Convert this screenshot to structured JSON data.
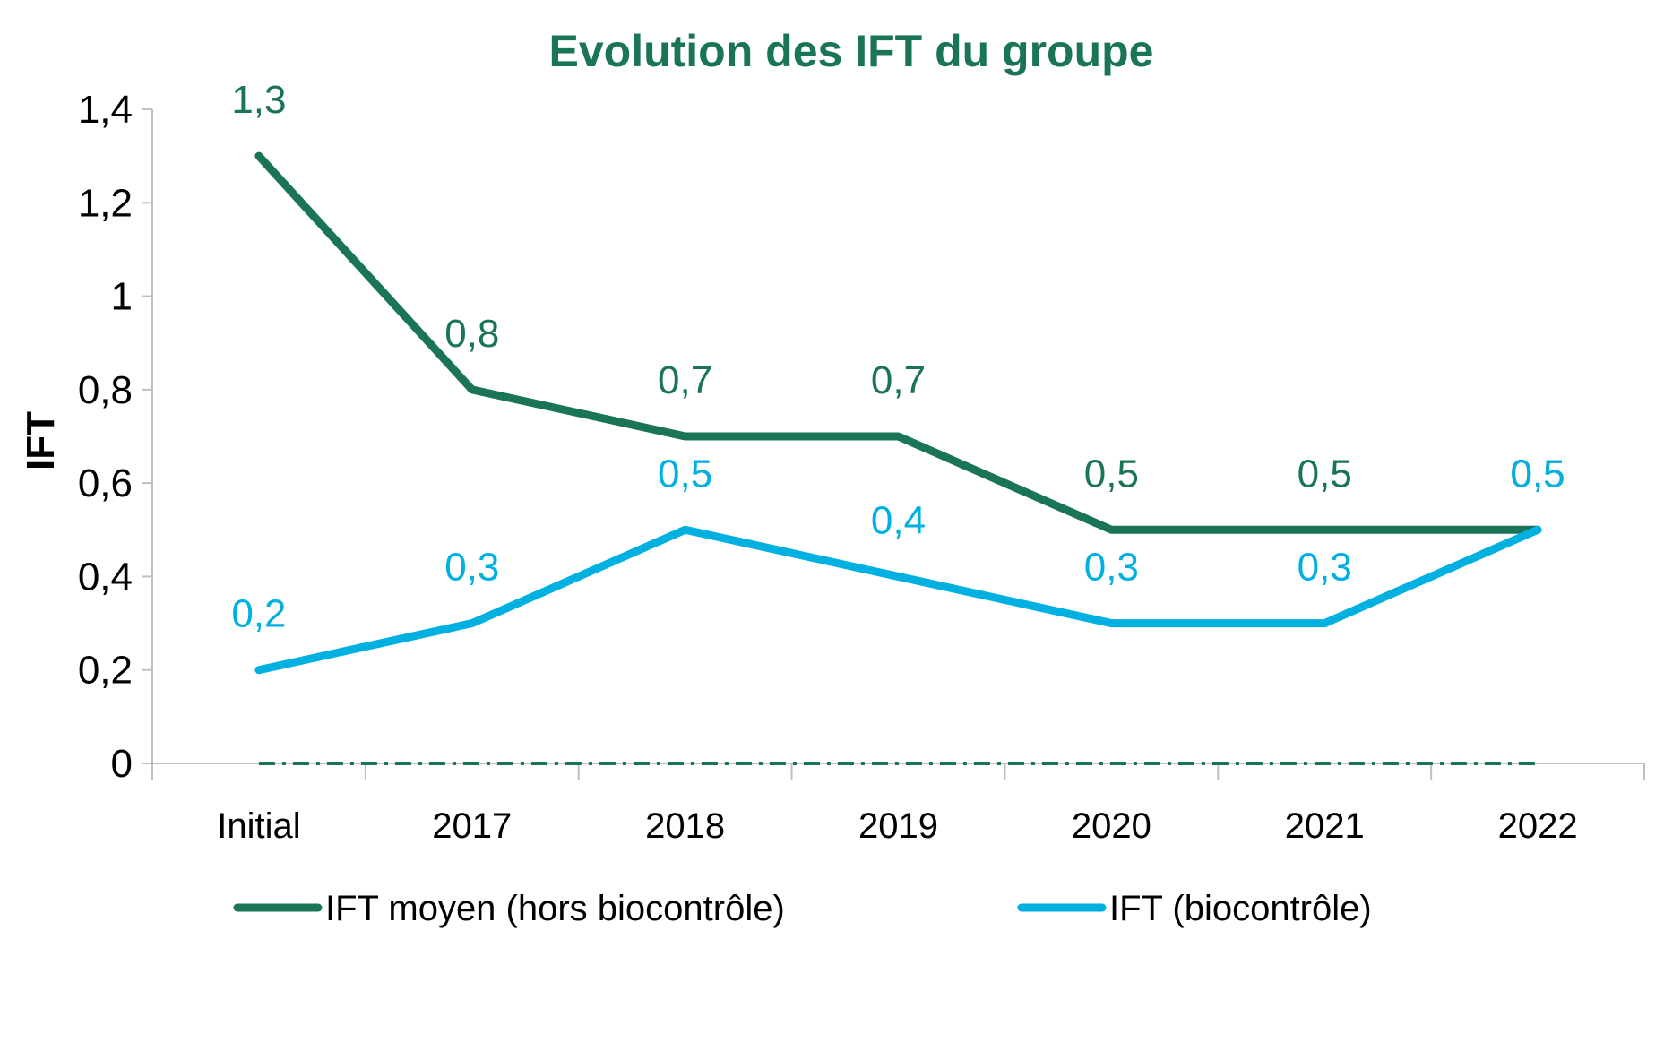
{
  "chart_data": {
    "type": "line",
    "title": "Evolution des IFT du groupe",
    "xlabel": "",
    "ylabel": "IFT",
    "categories": [
      "Initial",
      "2017",
      "2018",
      "2019",
      "2020",
      "2021",
      "2022"
    ],
    "ylim": [
      0,
      1.4
    ],
    "yticks": [
      0,
      0.2,
      0.4,
      0.6,
      0.8,
      1,
      1.2,
      1.4
    ],
    "ytick_labels": [
      "0",
      "0,2",
      "0,4",
      "0,6",
      "0,8",
      "1",
      "1,2",
      "1,4"
    ],
    "grid": false,
    "legend_position": "bottom",
    "series": [
      {
        "name": "IFT moyen (hors biocontrôle)",
        "color": "#1a7458",
        "values": [
          1.3,
          0.8,
          0.7,
          0.7,
          0.5,
          0.5,
          0.5
        ],
        "labels": [
          "1,3",
          "0,8",
          "0,7",
          "0,7",
          "0,5",
          "0,5",
          "0,5"
        ]
      },
      {
        "name": "IFT (biocontrôle)",
        "color": "#00b0e0",
        "values": [
          0.2,
          0.3,
          0.5,
          0.4,
          0.3,
          0.3,
          0.5
        ],
        "labels": [
          "0,2",
          "0,3",
          "0,5",
          "0,4",
          "0,3",
          "0,3",
          "0,5"
        ]
      },
      {
        "name": "baseline",
        "color": "#1a7458",
        "style": "dash-dot",
        "values": [
          0,
          0,
          0,
          0,
          0,
          0,
          0
        ],
        "in_legend": false
      }
    ],
    "title_color": "#1a7458"
  }
}
